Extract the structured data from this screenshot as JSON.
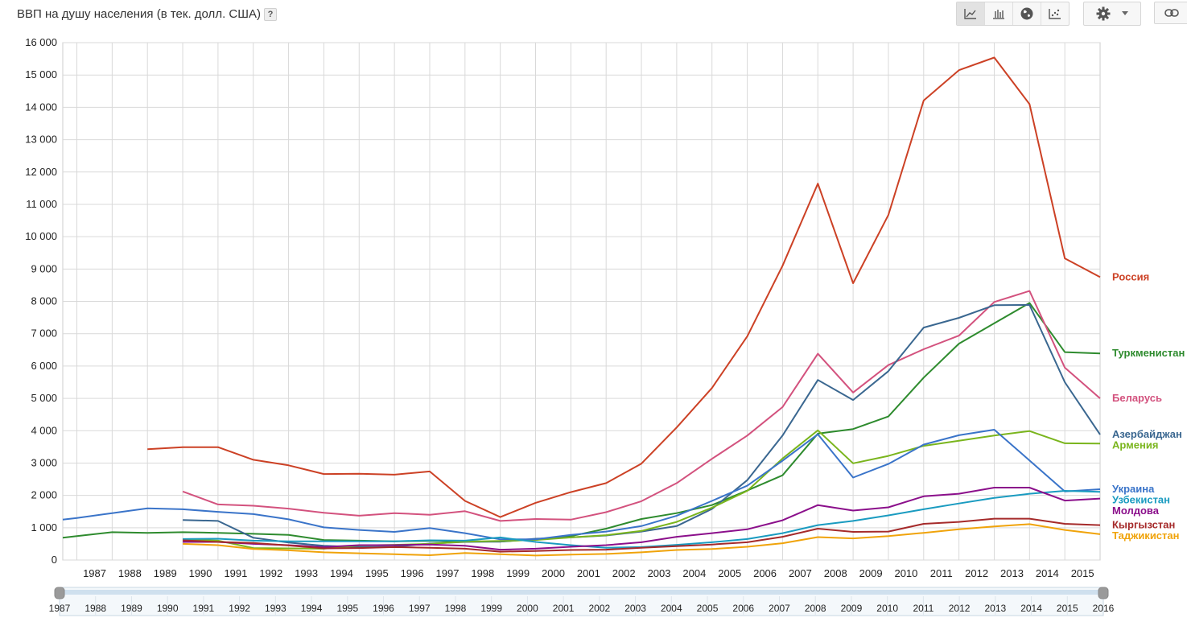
{
  "header": {
    "title": "ВВП на душу населения (в тек. долл. США)",
    "help_label": "?"
  },
  "toolbar": {
    "view_buttons": [
      {
        "name": "line-chart-icon",
        "active": true
      },
      {
        "name": "bar-chart-icon",
        "active": false
      },
      {
        "name": "globe-map-icon",
        "active": false
      },
      {
        "name": "scatter-chart-icon",
        "active": false
      }
    ],
    "settings_icon": "gear-icon",
    "settings_dropdown_icon": "chevron-down-icon",
    "link_icon": "link-icon"
  },
  "chart_data": {
    "type": "line",
    "title": "ВВП на душу населения (в тек. долл. США)",
    "xlabel": "",
    "ylabel": "",
    "ylim": [
      0,
      16000
    ],
    "xlim": [
      1986.6,
      2016
    ],
    "grid": true,
    "y_ticks": [
      "0",
      "1 000",
      "2 000",
      "3 000",
      "4 000",
      "5 000",
      "6 000",
      "7 000",
      "8 000",
      "9 000",
      "10 000",
      "11 000",
      "12 000",
      "13 000",
      "14 000",
      "15 000",
      "16 000"
    ],
    "x_ticks": [
      "1987",
      "1988",
      "1989",
      "1990",
      "1991",
      "1992",
      "1993",
      "1994",
      "1995",
      "1996",
      "1997",
      "1998",
      "1999",
      "2000",
      "2001",
      "2002",
      "2003",
      "2004",
      "2005",
      "2006",
      "2007",
      "2008",
      "2009",
      "2010",
      "2011",
      "2012",
      "2013",
      "2014",
      "2015"
    ],
    "range_ticks": [
      "1987",
      "1988",
      "1989",
      "1990",
      "1991",
      "1992",
      "1993",
      "1994",
      "1995",
      "1996",
      "1997",
      "1998",
      "1999",
      "2000",
      "2001",
      "2002",
      "2003",
      "2004",
      "2005",
      "2006",
      "2007",
      "2008",
      "2009",
      "2010",
      "2011",
      "2012",
      "2013",
      "2014",
      "2015",
      "2016"
    ],
    "series": [
      {
        "name": "Россия",
        "color": "#cc4125",
        "x": [
          1989,
          1990,
          1991,
          1992,
          1993,
          1994,
          1995,
          1996,
          1997,
          1998,
          1999,
          2000,
          2001,
          2002,
          2003,
          2004,
          2005,
          2006,
          2007,
          2008,
          2009,
          2010,
          2011,
          2012,
          2013,
          2014,
          2015
        ],
        "values": [
          3430,
          3490,
          3490,
          3100,
          2930,
          2660,
          2670,
          2640,
          2740,
          1830,
          1330,
          1770,
          2100,
          2380,
          2980,
          4100,
          5320,
          6920,
          9100,
          11640,
          8560,
          10670,
          14210,
          15150,
          15540,
          14100,
          9330
        ]
      },
      {
        "name": "Туркменистан",
        "color": "#2e8b2e",
        "x": [
          1986.6,
          1987,
          1988,
          1989,
          1990,
          1991,
          1992,
          1993,
          1994,
          1995,
          1996,
          1997,
          1998,
          1999,
          2000,
          2001,
          2002,
          2003,
          2004,
          2005,
          2006,
          2007,
          2008,
          2009,
          2010,
          2011,
          2012,
          2013,
          2014,
          2015
        ],
        "values": [
          690,
          740,
          860,
          840,
          860,
          840,
          810,
          780,
          620,
          600,
          580,
          590,
          580,
          570,
          640,
          740,
          970,
          1270,
          1450,
          1700,
          2150,
          2620,
          3910,
          4050,
          4440,
          5640,
          6690,
          7320,
          7950,
          6430
        ]
      },
      {
        "name": "Беларусь",
        "color": "#d3527e",
        "x": [
          1990,
          1991,
          1992,
          1993,
          1994,
          1995,
          1996,
          1997,
          1998,
          1999,
          2000,
          2001,
          2002,
          2003,
          2004,
          2005,
          2006,
          2007,
          2008,
          2009,
          2010,
          2011,
          2012,
          2013,
          2014,
          2015
        ],
        "values": [
          2120,
          1720,
          1680,
          1590,
          1460,
          1370,
          1450,
          1400,
          1510,
          1210,
          1270,
          1250,
          1480,
          1820,
          2380,
          3130,
          3850,
          4730,
          6380,
          5180,
          6030,
          6520,
          6940,
          7980,
          8320,
          5950
        ]
      },
      {
        "name": "Азербайджан",
        "color": "#3a6790",
        "x": [
          1990,
          1991,
          1992,
          1993,
          1994,
          1995,
          1996,
          1997,
          1998,
          1999,
          2000,
          2001,
          2002,
          2003,
          2004,
          2005,
          2006,
          2007,
          2008,
          2009,
          2010,
          2011,
          2012,
          2013,
          2014,
          2015
        ],
        "values": [
          1240,
          1210,
          690,
          540,
          440,
          400,
          410,
          510,
          560,
          570,
          660,
          700,
          760,
          880,
          1050,
          1580,
          2470,
          3850,
          5570,
          4950,
          5840,
          7190,
          7490,
          7880,
          7890,
          5500
        ]
      },
      {
        "name": "Армения",
        "color": "#7ab51d",
        "x": [
          1990,
          1991,
          1992,
          1993,
          1994,
          1995,
          1996,
          1997,
          1998,
          1999,
          2000,
          2001,
          2002,
          2003,
          2004,
          2005,
          2006,
          2007,
          2008,
          2009,
          2010,
          2011,
          2012,
          2013,
          2014,
          2015
        ],
        "values": [
          640,
          600,
          370,
          360,
          350,
          450,
          470,
          500,
          570,
          590,
          620,
          700,
          770,
          900,
          1180,
          1620,
          2140,
          3140,
          4010,
          2990,
          3220,
          3530,
          3690,
          3850,
          3990,
          3610
        ]
      },
      {
        "name": "Украина",
        "color": "#3a74c9",
        "x": [
          1986.6,
          1987,
          1988,
          1989,
          1990,
          1991,
          1992,
          1993,
          1994,
          1995,
          1996,
          1997,
          1998,
          1999,
          2000,
          2001,
          2002,
          2003,
          2004,
          2005,
          2006,
          2007,
          2008,
          2009,
          2010,
          2011,
          2012,
          2013,
          2014,
          2015
        ],
        "values": [
          1250,
          1300,
          1450,
          1600,
          1570,
          1490,
          1420,
          1260,
          1010,
          930,
          870,
          990,
          830,
          640,
          640,
          780,
          880,
          1050,
          1370,
          1830,
          2300,
          3070,
          3890,
          2550,
          2970,
          3570,
          3860,
          4030,
          3080,
          2120
        ]
      },
      {
        "name": "Узбекистан",
        "color": "#1a9bc0",
        "x": [
          1990,
          1991,
          1992,
          1993,
          1994,
          1995,
          1996,
          1997,
          1998,
          1999,
          2000,
          2001,
          2002,
          2003,
          2004,
          2005,
          2006,
          2007,
          2008,
          2009,
          2010,
          2011,
          2012,
          2013,
          2014,
          2015
        ],
        "values": [
          650,
          660,
          600,
          580,
          580,
          580,
          580,
          610,
          600,
          700,
          560,
          460,
          380,
          400,
          470,
          550,
          650,
          830,
          1080,
          1210,
          1380,
          1570,
          1750,
          1920,
          2050,
          2140
        ]
      },
      {
        "name": "Молдова",
        "color": "#8b0f8b",
        "x": [
          1990,
          1991,
          1992,
          1993,
          1994,
          1995,
          1996,
          1997,
          1998,
          1999,
          2000,
          2001,
          2002,
          2003,
          2004,
          2005,
          2006,
          2007,
          2008,
          2009,
          2010,
          2011,
          2012,
          2013,
          2014,
          2015
        ],
        "values": [
          560,
          560,
          500,
          460,
          400,
          460,
          460,
          480,
          440,
          320,
          350,
          410,
          460,
          550,
          720,
          830,
          950,
          1230,
          1700,
          1530,
          1630,
          1970,
          2050,
          2240,
          2240,
          1840
        ]
      },
      {
        "name": "Кыргызстан",
        "color": "#a52a2a",
        "x": [
          1990,
          1991,
          1992,
          1993,
          1994,
          1995,
          1996,
          1997,
          1998,
          1999,
          2000,
          2001,
          2002,
          2003,
          2004,
          2005,
          2006,
          2007,
          2008,
          2009,
          2010,
          2011,
          2012,
          2013,
          2014,
          2015
        ],
        "values": [
          610,
          560,
          530,
          450,
          360,
          370,
          400,
          380,
          350,
          260,
          280,
          310,
          320,
          380,
          430,
          480,
          550,
          720,
          970,
          870,
          880,
          1120,
          1180,
          1280,
          1280,
          1120
        ]
      },
      {
        "name": "Таджикистан",
        "color": "#f0a30a",
        "x": [
          1990,
          1991,
          1992,
          1993,
          1994,
          1995,
          1996,
          1997,
          1998,
          1999,
          2000,
          2001,
          2002,
          2003,
          2004,
          2005,
          2006,
          2007,
          2008,
          2009,
          2010,
          2011,
          2012,
          2013,
          2014,
          2015
        ],
        "values": [
          500,
          460,
          340,
          300,
          240,
          210,
          180,
          150,
          220,
          180,
          140,
          170,
          190,
          240,
          310,
          340,
          410,
          520,
          710,
          670,
          740,
          840,
          950,
          1040,
          1110,
          930
        ]
      }
    ],
    "end_values": {
      "Россия": 8750,
      "Туркменистан": 6390,
      "Беларусь": 5000,
      "Азербайджан": 3880,
      "Армения": 3600,
      "Украина": 2190,
      "Узбекистан": 2110,
      "Молдова": 1900,
      "Кыргызстан": 1080,
      "Таджикистан": 800
    },
    "end_labels": [
      {
        "name": "Россия",
        "color": "#cc4125"
      },
      {
        "name": "Туркменистан",
        "color": "#2e8b2e"
      },
      {
        "name": "Беларусь",
        "color": "#d3527e"
      },
      {
        "name": "Азербайджан",
        "color": "#3a6790"
      },
      {
        "name": "Армения",
        "color": "#7ab51d"
      },
      {
        "name": "Украина",
        "color": "#3a74c9"
      },
      {
        "name": "Узбекистан",
        "color": "#1a9bc0"
      },
      {
        "name": "Молдова",
        "color": "#8b0f8b"
      },
      {
        "name": "Кыргызстан",
        "color": "#a52a2a"
      },
      {
        "name": "Таджикистан",
        "color": "#f0a30a"
      }
    ]
  }
}
